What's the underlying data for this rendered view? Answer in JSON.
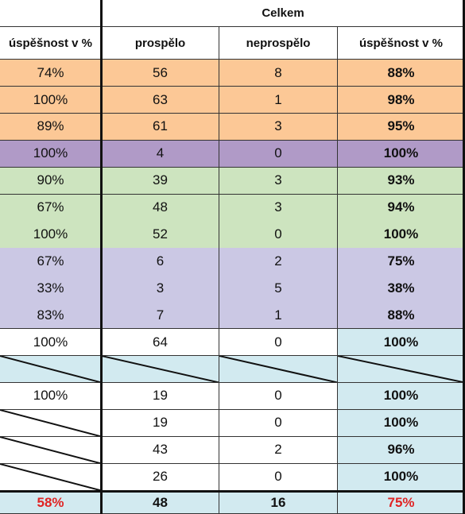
{
  "table": {
    "group_header": "Celkem",
    "columns": [
      "úspěšnost v %",
      "prospělo",
      "neprospělo",
      "úspěšnost v %"
    ],
    "rows": [
      {
        "cells": [
          "74%",
          "56",
          "8",
          "88%"
        ],
        "fill": "#fcc896",
        "slashes": []
      },
      {
        "cells": [
          "100%",
          "63",
          "1",
          "98%"
        ],
        "fill": "#fcc896",
        "slashes": []
      },
      {
        "cells": [
          "89%",
          "61",
          "3",
          "95%"
        ],
        "fill": "#fcc896",
        "slashes": []
      },
      {
        "cells": [
          "100%",
          "4",
          "0",
          "100%"
        ],
        "fill": "#b09ac7",
        "slashes": []
      },
      {
        "cells": [
          "90%",
          "39",
          "3",
          "93%"
        ],
        "fill": "#cde4bf",
        "slashes": []
      },
      {
        "cells": [
          "67%",
          "48",
          "3",
          "94%"
        ],
        "fill": "#cde4bf",
        "slashes": []
      },
      {
        "cells": [
          "100%",
          "52",
          "0",
          "100%"
        ],
        "fill": "#cde4bf",
        "slashes": []
      },
      {
        "cells": [
          "67%",
          "6",
          "2",
          "75%"
        ],
        "fill": "#cbc8e4",
        "slashes": []
      },
      {
        "cells": [
          "33%",
          "3",
          "5",
          "38%"
        ],
        "fill": "#cbc8e4",
        "slashes": []
      },
      {
        "cells": [
          "83%",
          "7",
          "1",
          "88%"
        ],
        "fill": "#cbc8e4",
        "slashes": []
      },
      {
        "cells": [
          "100%",
          "64",
          "0",
          "100%"
        ],
        "fill": "#ffffff",
        "last_fill": "#d2eaf0",
        "slashes": []
      },
      {
        "cells": [
          "",
          "",
          "",
          ""
        ],
        "fill": "#d2eaf0",
        "slashes": [
          0,
          1,
          2,
          3
        ]
      },
      {
        "cells": [
          "100%",
          "19",
          "0",
          "100%"
        ],
        "fill": "#ffffff",
        "last_fill": "#d2eaf0",
        "slashes": []
      },
      {
        "cells": [
          "",
          "19",
          "0",
          "100%"
        ],
        "fill": "#ffffff",
        "last_fill": "#d2eaf0",
        "slashes": [
          0
        ]
      },
      {
        "cells": [
          "",
          "43",
          "2",
          "96%"
        ],
        "fill": "#ffffff",
        "last_fill": "#d2eaf0",
        "slashes": [
          0
        ]
      },
      {
        "cells": [
          "",
          "26",
          "0",
          "100%"
        ],
        "fill": "#ffffff",
        "last_fill": "#d2eaf0",
        "slashes": [
          0
        ]
      }
    ],
    "total_row": {
      "cells": [
        "58%",
        "48",
        "16",
        "75%"
      ],
      "fill": "#d2eaf0",
      "red_columns": [
        0,
        3
      ]
    }
  }
}
